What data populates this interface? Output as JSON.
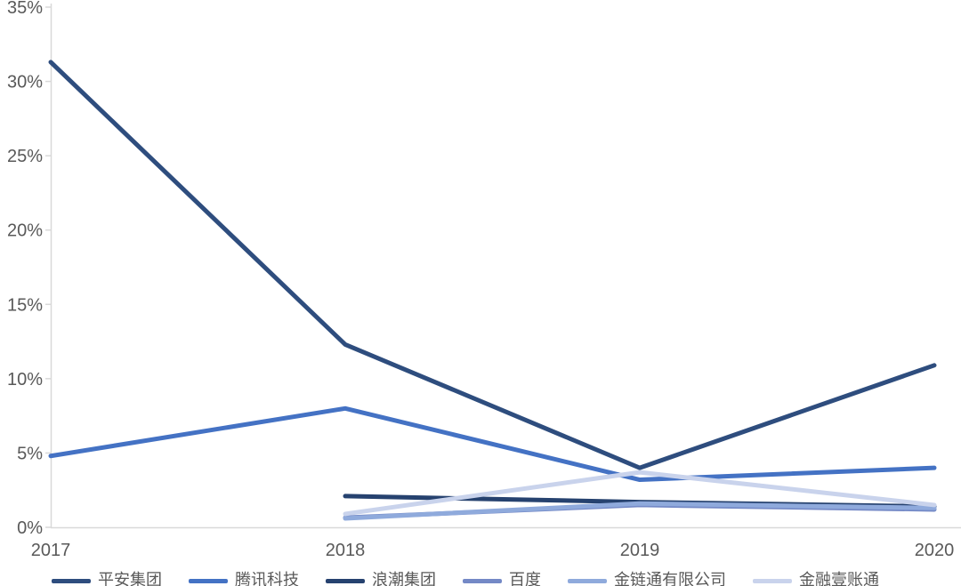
{
  "chart_data": {
    "type": "line",
    "title": "",
    "xlabel": "",
    "ylabel": "",
    "x_categories": [
      "2017",
      "2018",
      "2019",
      "2020"
    ],
    "y_tick_labels": [
      "0%",
      "5%",
      "10%",
      "15%",
      "20%",
      "25%",
      "30%",
      "35%"
    ],
    "ylim": [
      0,
      35
    ],
    "y_unit": "percent",
    "grid": false,
    "legend_position": "bottom",
    "series": [
      {
        "name": "平安集团",
        "color": "#2E4D7E",
        "values": [
          31.3,
          12.3,
          4.0,
          10.9
        ]
      },
      {
        "name": "腾讯科技",
        "color": "#4472C4",
        "values": [
          4.8,
          8.0,
          3.2,
          4.0
        ]
      },
      {
        "name": "浪潮集团",
        "color": "#26426F",
        "values": [
          null,
          2.1,
          1.7,
          1.4
        ]
      },
      {
        "name": "百度",
        "color": "#7489C6",
        "values": [
          null,
          0.65,
          1.5,
          1.2
        ]
      },
      {
        "name": "金链通有限公司",
        "color": "#8FAADC",
        "values": [
          null,
          0.6,
          1.6,
          1.3
        ]
      },
      {
        "name": "金融壹账通",
        "color": "#C9D3EC",
        "values": [
          null,
          0.9,
          3.7,
          1.5
        ]
      }
    ]
  },
  "style": {
    "axis_line_color": "#D9D9D9",
    "tick_color": "#D9D9D9",
    "label_color": "#595959",
    "line_width": 5
  }
}
